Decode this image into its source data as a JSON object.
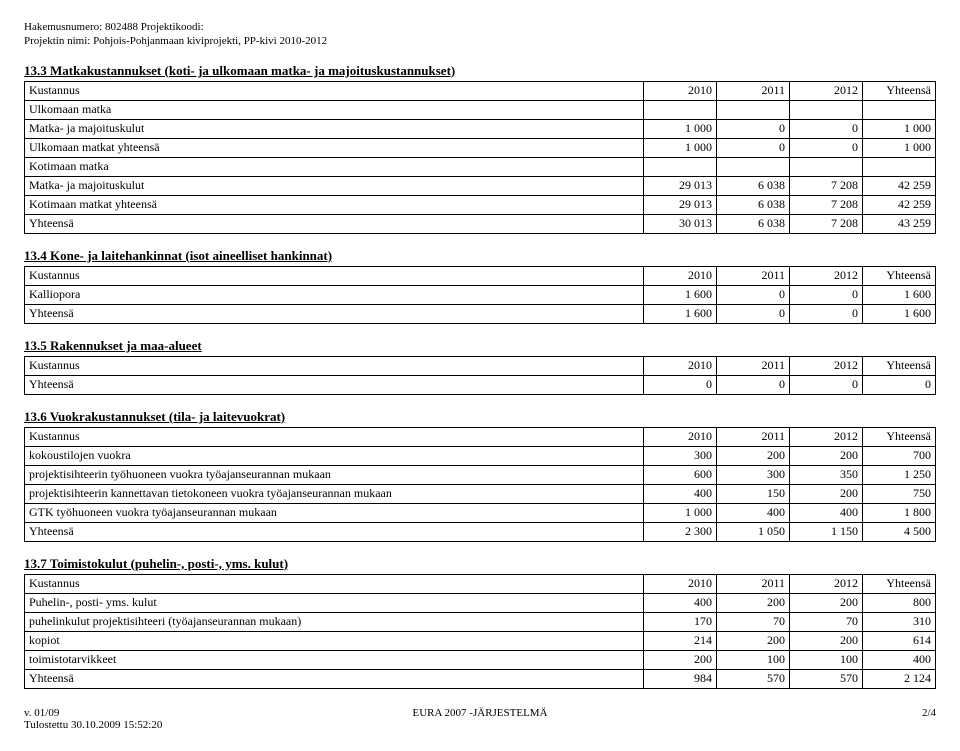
{
  "header": {
    "line1_label": "Hakemusnumero:",
    "line1_value": "802488",
    "line1_label2": "Projektikoodi:",
    "line2_label": "Projektin nimi:",
    "line2_value": "Pohjois-Pohjanmaan kiviprojekti, PP-kivi 2010-2012"
  },
  "sections": [
    {
      "title": "13.3 Matkakustannukset (koti- ja ulkomaan matka- ja majoituskustannukset)",
      "head": [
        "Kustannus",
        "2010",
        "2011",
        "2012",
        "Yhteensä"
      ],
      "rows": [
        {
          "label": "Ulkomaan matka",
          "vals": [
            "",
            "",
            "",
            ""
          ],
          "sub": true
        },
        {
          "label": "Matka- ja majoituskulut",
          "vals": [
            "1 000",
            "0",
            "0",
            "1 000"
          ]
        },
        {
          "label": "Ulkomaan matkat yhteensä",
          "vals": [
            "1 000",
            "0",
            "0",
            "1 000"
          ]
        },
        {
          "label": "Kotimaan matka",
          "vals": [
            "",
            "",
            "",
            ""
          ],
          "sub": true
        },
        {
          "label": "Matka- ja majoituskulut",
          "vals": [
            "29 013",
            "6 038",
            "7 208",
            "42 259"
          ]
        },
        {
          "label": "Kotimaan matkat yhteensä",
          "vals": [
            "29 013",
            "6 038",
            "7 208",
            "42 259"
          ]
        },
        {
          "label": "Yhteensä",
          "vals": [
            "30 013",
            "6 038",
            "7 208",
            "43 259"
          ]
        }
      ]
    },
    {
      "title": "13.4 Kone- ja laitehankinnat (isot aineelliset hankinnat)",
      "head": [
        "Kustannus",
        "2010",
        "2011",
        "2012",
        "Yhteensä"
      ],
      "rows": [
        {
          "label": "Kalliopora",
          "vals": [
            "1 600",
            "0",
            "0",
            "1 600"
          ]
        },
        {
          "label": "Yhteensä",
          "vals": [
            "1 600",
            "0",
            "0",
            "1 600"
          ]
        }
      ]
    },
    {
      "title": "13.5 Rakennukset ja maa-alueet",
      "head": [
        "Kustannus",
        "2010",
        "2011",
        "2012",
        "Yhteensä"
      ],
      "rows": [
        {
          "label": "Yhteensä",
          "vals": [
            "0",
            "0",
            "0",
            "0"
          ]
        }
      ]
    },
    {
      "title": "13.6 Vuokrakustannukset (tila- ja laitevuokrat)",
      "head": [
        "Kustannus",
        "2010",
        "2011",
        "2012",
        "Yhteensä"
      ],
      "rows": [
        {
          "label": "kokoustilojen vuokra",
          "vals": [
            "300",
            "200",
            "200",
            "700"
          ]
        },
        {
          "label": "projektisihteerin työhuoneen vuokra työajanseurannan mukaan",
          "vals": [
            "600",
            "300",
            "350",
            "1 250"
          ]
        },
        {
          "label": "projektisihteerin kannettavan tietokoneen vuokra työajanseurannan mukaan",
          "vals": [
            "400",
            "150",
            "200",
            "750"
          ]
        },
        {
          "label": "GTK työhuoneen vuokra työajanseurannan mukaan",
          "vals": [
            "1 000",
            "400",
            "400",
            "1 800"
          ]
        },
        {
          "label": "Yhteensä",
          "vals": [
            "2 300",
            "1 050",
            "1 150",
            "4 500"
          ]
        }
      ]
    },
    {
      "title": "13.7 Toimistokulut (puhelin-, posti-, yms. kulut)",
      "head": [
        "Kustannus",
        "2010",
        "2011",
        "2012",
        "Yhteensä"
      ],
      "rows": [
        {
          "label": "Puhelin-, posti- yms. kulut",
          "vals": [
            "400",
            "200",
            "200",
            "800"
          ]
        },
        {
          "label": "puhelinkulut projektisihteeri (työajanseurannan mukaan)",
          "vals": [
            "170",
            "70",
            "70",
            "310"
          ]
        },
        {
          "label": "kopiot",
          "vals": [
            "214",
            "200",
            "200",
            "614"
          ]
        },
        {
          "label": "toimistotarvikkeet",
          "vals": [
            "200",
            "100",
            "100",
            "400"
          ]
        },
        {
          "label": "Yhteensä",
          "vals": [
            "984",
            "570",
            "570",
            "2 124"
          ]
        }
      ]
    }
  ],
  "footer": {
    "left1": "v. 01/09",
    "center": "EURA 2007 -JÄRJESTELMÄ",
    "right": "2/4",
    "left2": "Tulostettu 30.10.2009 15:52:20"
  }
}
